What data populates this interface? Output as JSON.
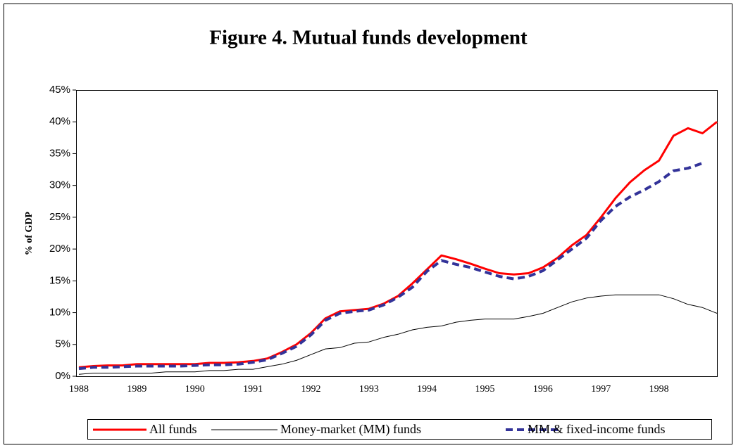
{
  "chart_data": {
    "type": "line",
    "title": "Figure 4. Mutual funds development",
    "y_label": "% of GDP",
    "categories": [
      "1988",
      null,
      null,
      null,
      "1989",
      null,
      null,
      null,
      "1990",
      null,
      null,
      null,
      "1991",
      null,
      null,
      null,
      "1992",
      null,
      null,
      null,
      "1993",
      null,
      null,
      null,
      "1994",
      null,
      null,
      null,
      "1995",
      null,
      null,
      null,
      "1996",
      null,
      null,
      null,
      "1997",
      null,
      null,
      null,
      "1998",
      null,
      null,
      null,
      null
    ],
    "series": [
      {
        "name": "All funds",
        "color": "#ff0000",
        "style": "solid",
        "width": 3,
        "values": [
          1.4,
          1.6,
          1.7,
          1.7,
          1.9,
          1.9,
          1.9,
          1.9,
          1.9,
          2.1,
          2.1,
          2.2,
          2.4,
          2.8,
          3.8,
          5.0,
          6.8,
          9.1,
          10.2,
          10.4,
          10.6,
          11.4,
          12.6,
          14.6,
          16.8,
          19.0,
          18.4,
          17.7,
          16.9,
          16.2,
          16.0,
          16.2,
          17.1,
          18.6,
          20.6,
          22.2,
          25.0,
          28.0,
          30.5,
          32.4,
          33.9,
          37.8,
          39.0,
          38.2,
          40.0
        ]
      },
      {
        "name": "Money-market (MM) funds",
        "color": "#000000",
        "style": "solid",
        "width": 1,
        "values": [
          0.3,
          0.5,
          0.5,
          0.5,
          0.5,
          0.5,
          0.7,
          0.7,
          0.7,
          0.9,
          0.9,
          1.1,
          1.1,
          1.5,
          1.9,
          2.5,
          3.4,
          4.3,
          4.5,
          5.2,
          5.4,
          6.1,
          6.6,
          7.3,
          7.7,
          7.9,
          8.5,
          8.8,
          9.0,
          9.0,
          9.0,
          9.4,
          9.9,
          10.8,
          11.7,
          12.3,
          12.6,
          12.8,
          12.8,
          12.8,
          12.8,
          12.2,
          11.3,
          10.8,
          9.9
        ]
      },
      {
        "name": "MM & fixed-income funds",
        "color": "#333399",
        "style": "dashed",
        "width": 4,
        "values": [
          1.2,
          1.4,
          1.4,
          1.5,
          1.6,
          1.6,
          1.6,
          1.6,
          1.7,
          1.8,
          1.8,
          1.9,
          2.2,
          2.6,
          3.6,
          4.7,
          6.5,
          8.8,
          9.9,
          10.2,
          10.4,
          11.2,
          12.4,
          14.0,
          16.5,
          18.2,
          17.6,
          17.1,
          16.4,
          15.7,
          15.3,
          15.7,
          16.6,
          18.3,
          20.0,
          21.7,
          24.5,
          26.7,
          28.2,
          29.3,
          30.6,
          32.3,
          32.7,
          33.5,
          null
        ]
      }
    ],
    "ylim": [
      0,
      45
    ],
    "yticks": [
      {
        "value": 0,
        "label": "0%"
      },
      {
        "value": 5,
        "label": "5%"
      },
      {
        "value": 10,
        "label": "10%"
      },
      {
        "value": 15,
        "label": "15%"
      },
      {
        "value": 20,
        "label": "20%"
      },
      {
        "value": 25,
        "label": "25%"
      },
      {
        "value": 30,
        "label": "30%"
      },
      {
        "value": 35,
        "label": "35%"
      },
      {
        "value": 40,
        "label": "40%"
      },
      {
        "value": 45,
        "label": "45%"
      }
    ],
    "grid": false,
    "legend": "bottom"
  }
}
